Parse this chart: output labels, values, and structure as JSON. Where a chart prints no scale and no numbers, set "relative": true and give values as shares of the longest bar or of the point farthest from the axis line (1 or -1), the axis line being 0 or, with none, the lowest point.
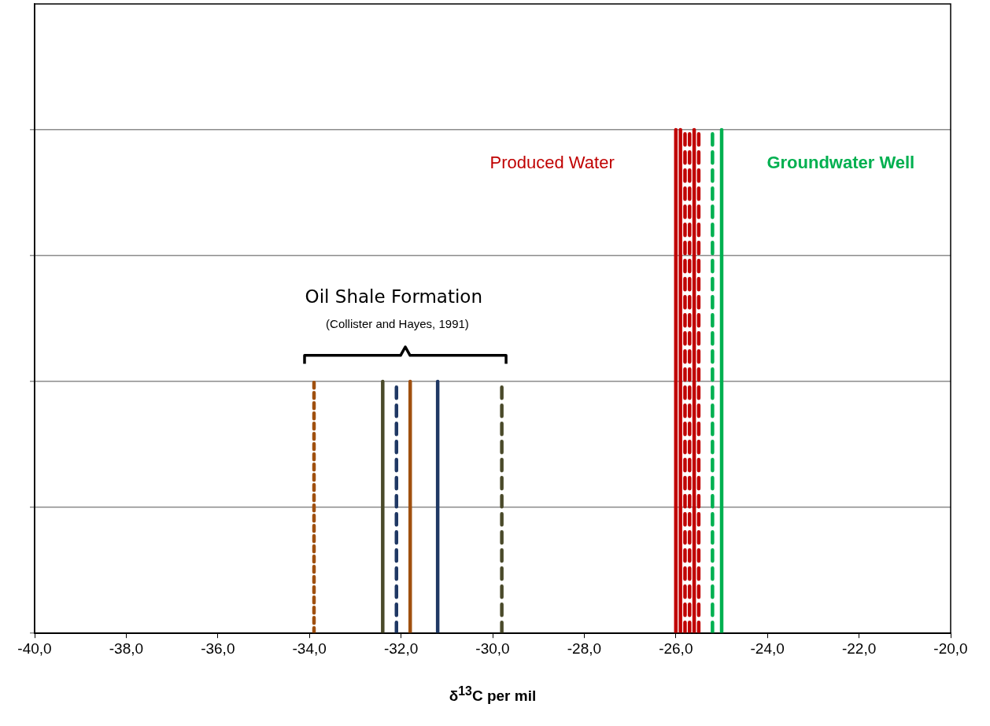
{
  "chart_data": {
    "type": "line",
    "relative": true,
    "xlabel": "δ$^{13}$C  per mil",
    "xlim": [
      -40,
      -20
    ],
    "xticks": [
      {
        "value": -40,
        "label": "-40,0"
      },
      {
        "value": -38,
        "label": "-38,0"
      },
      {
        "value": -36,
        "label": "-36,0"
      },
      {
        "value": -34,
        "label": "-34,0"
      },
      {
        "value": -32,
        "label": "-32,0"
      },
      {
        "value": -30,
        "label": "-30,0"
      },
      {
        "value": -28,
        "label": "-28,0"
      },
      {
        "value": -26,
        "label": "-26,0"
      },
      {
        "value": -24,
        "label": "-24,0"
      },
      {
        "value": -22,
        "label": "-22,0"
      },
      {
        "value": -20,
        "label": "-20,0"
      }
    ],
    "grid": "y",
    "legend": false,
    "tick_labels": "x",
    "marker": "none",
    "series": [
      {
        "color": "#a0500f",
        "line_style": "dotted",
        "x": [
          -33.9,
          -33.9
        ],
        "values": [
          0,
          0.5
        ]
      },
      {
        "color": "#4a4a2a",
        "line_style": "solid",
        "x": [
          -32.4,
          -32.4
        ],
        "values": [
          0,
          0.5
        ]
      },
      {
        "color": "#1f3864",
        "line_style": "dashed",
        "x": [
          -32.1,
          -32.1
        ],
        "values": [
          0,
          0.5
        ]
      },
      {
        "color": "#a0500f",
        "line_style": "solid",
        "x": [
          -31.8,
          -31.8
        ],
        "values": [
          0,
          0.5
        ]
      },
      {
        "color": "#1f3864",
        "line_style": "solid",
        "x": [
          -31.2,
          -31.2
        ],
        "values": [
          0,
          0.5
        ]
      },
      {
        "color": "#4a4a2a",
        "line_style": "dashed",
        "x": [
          -29.8,
          -29.8
        ],
        "values": [
          0,
          0.5
        ]
      },
      {
        "color": "#c00000",
        "line_style": "solid",
        "x": [
          -26.0,
          -26.0
        ],
        "values": [
          0,
          1
        ]
      },
      {
        "color": "#c00000",
        "line_style": "solid",
        "x": [
          -25.9,
          -25.9
        ],
        "values": [
          0,
          1
        ]
      },
      {
        "color": "#c00000",
        "line_style": "dashed",
        "x": [
          -25.8,
          -25.8
        ],
        "values": [
          0,
          1
        ]
      },
      {
        "color": "#c00000",
        "line_style": "dashed",
        "x": [
          -25.7,
          -25.7
        ],
        "values": [
          0,
          1
        ]
      },
      {
        "color": "#c00000",
        "line_style": "solid",
        "x": [
          -25.6,
          -25.6
        ],
        "values": [
          0,
          1
        ]
      },
      {
        "color": "#c00000",
        "line_style": "dashed",
        "x": [
          -25.5,
          -25.5
        ],
        "values": [
          0,
          1
        ]
      },
      {
        "color": "#00b050",
        "line_style": "dashed",
        "x": [
          -25.2,
          -25.2
        ],
        "values": [
          0,
          1
        ]
      },
      {
        "color": "#00b050",
        "line_style": "solid",
        "x": [
          -25.0,
          -25.0
        ],
        "values": [
          0,
          1
        ]
      }
    ],
    "annotations": [
      "Produced Water",
      "Groundwater Well",
      "Oil Shale Formation",
      "(Collister and Hayes, 1991)"
    ]
  }
}
